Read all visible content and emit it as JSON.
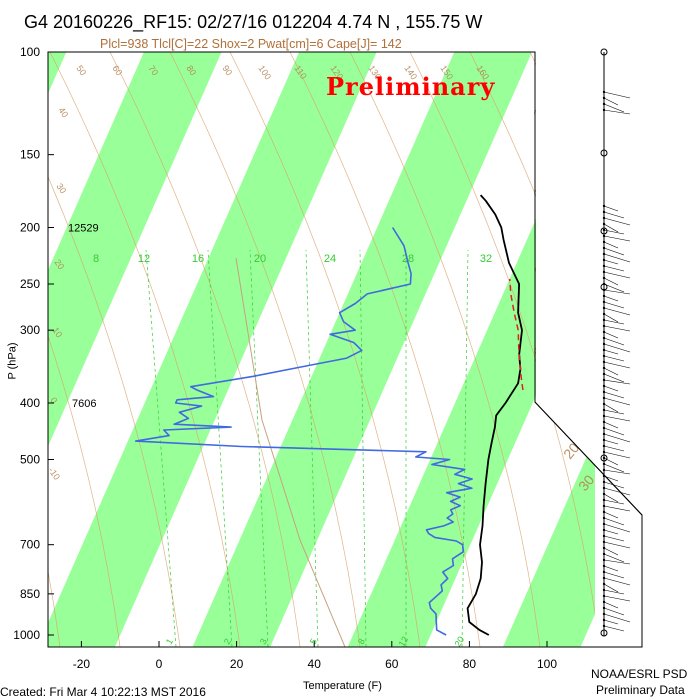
{
  "header": {
    "title": "G4 20160226_RF15: 02/27/16 012204   4.74 N , 155.75 W",
    "subtitle": "Plcl=938 Tlcl[C]=22 Shox=2 Pwat[cm]=6 Cape[J]= 142"
  },
  "stamp": "Preliminary",
  "footer": {
    "created": "Created: Fri Mar  4 10:22:13 MST 2016",
    "credit_line1": "NOAA/ESRL PSD",
    "credit_line2": "Preliminary Data"
  },
  "colors": {
    "band": "#99ff99",
    "temperature": "#000000",
    "dewpoint": "#4169e1",
    "parcel": "#e02020",
    "isotherm_label": "#b08050",
    "mixing_ratio": "#33cc33",
    "stamp": "#ff0000"
  },
  "chart_data": {
    "type": "skew-t",
    "title": "G4 20160226_RF15: 02/27/16 012204   4.74 N , 155.75 W",
    "xlabel": "Temperature (F)",
    "ylabel": "P (hPa)",
    "xlim": [
      -28,
      118
    ],
    "ylim": [
      1030,
      100
    ],
    "y_scale": "log",
    "pressure_ticks": [
      100,
      150,
      200,
      250,
      300,
      400,
      500,
      700,
      850,
      1000
    ],
    "pressure_tick_labels": [
      "100",
      "150",
      "200",
      "250",
      "300",
      "400",
      "500",
      "700",
      "850",
      "1000"
    ],
    "temperature_ticks": [
      -20,
      0,
      20,
      40,
      60,
      80,
      100
    ],
    "temperature_tick_labels": [
      "-20",
      "0",
      "20",
      "40",
      "60",
      "80",
      "100"
    ],
    "height_labels": [
      {
        "p": 200,
        "text": "12529"
      },
      {
        "p": 400,
        "text": "7606"
      }
    ],
    "isotherm_labels": [
      "-10",
      "0",
      "10",
      "20",
      "30",
      "40",
      "50",
      "60",
      "70",
      "80",
      "90",
      "100",
      "110",
      "120",
      "130",
      "140",
      "150",
      "160"
    ],
    "mixing_ratio_labels": [
      "8",
      "12",
      "16",
      "20",
      "24",
      "28",
      "32"
    ],
    "mixing_ratio_lower_labels": [
      "1",
      "2",
      "3",
      "5",
      "8",
      "12",
      "20"
    ],
    "series": [
      {
        "name": "temperature",
        "points": [
          [
            1000,
            85
          ],
          [
            980,
            82
          ],
          [
            950,
            78.5
          ],
          [
            900,
            76.5
          ],
          [
            850,
            77
          ],
          [
            800,
            76.5
          ],
          [
            750,
            75
          ],
          [
            700,
            72.5
          ],
          [
            650,
            71
          ],
          [
            600,
            69
          ],
          [
            550,
            67
          ],
          [
            500,
            65
          ],
          [
            470,
            64
          ],
          [
            440,
            63
          ],
          [
            420,
            62
          ],
          [
            400,
            63
          ],
          [
            370,
            64
          ],
          [
            350,
            63
          ],
          [
            330,
            61
          ],
          [
            300,
            59
          ],
          [
            280,
            56
          ],
          [
            250,
            53
          ],
          [
            230,
            48
          ],
          [
            210,
            44
          ],
          [
            200,
            42
          ],
          [
            190,
            39
          ],
          [
            180,
            35
          ],
          [
            176,
            33
          ]
        ]
      },
      {
        "name": "dewpoint",
        "points": [
          [
            1000,
            74
          ],
          [
            980,
            71
          ],
          [
            950,
            70
          ],
          [
            920,
            69
          ],
          [
            900,
            67
          ],
          [
            880,
            66
          ],
          [
            860,
            67
          ],
          [
            840,
            68
          ],
          [
            820,
            67
          ],
          [
            800,
            68
          ],
          [
            780,
            66
          ],
          [
            760,
            68
          ],
          [
            740,
            67
          ],
          [
            720,
            69
          ],
          [
            700,
            68
          ],
          [
            690,
            66
          ],
          [
            680,
            60
          ],
          [
            670,
            58
          ],
          [
            660,
            57
          ],
          [
            650,
            61
          ],
          [
            640,
            63
          ],
          [
            630,
            61
          ],
          [
            620,
            62
          ],
          [
            610,
            61
          ],
          [
            600,
            63
          ],
          [
            590,
            60
          ],
          [
            580,
            62
          ],
          [
            570,
            58
          ],
          [
            560,
            64
          ],
          [
            550,
            60
          ],
          [
            540,
            63
          ],
          [
            530,
            58
          ],
          [
            520,
            60
          ],
          [
            510,
            51
          ],
          [
            500,
            55
          ],
          [
            495,
            46
          ],
          [
            485,
            48
          ],
          [
            475,
            0
          ],
          [
            465,
            -28
          ],
          [
            455,
            -20
          ],
          [
            445,
            -22
          ],
          [
            440,
            -5
          ],
          [
            435,
            -20
          ],
          [
            425,
            -17
          ],
          [
            415,
            -20
          ],
          [
            405,
            -15
          ],
          [
            400,
            -22
          ],
          [
            395,
            -22
          ],
          [
            390,
            -13
          ],
          [
            380,
            -18
          ],
          [
            375,
            -20
          ],
          [
            360,
            -5
          ],
          [
            345,
            8
          ],
          [
            335,
            17
          ],
          [
            325,
            20
          ],
          [
            315,
            17
          ],
          [
            305,
            10
          ],
          [
            300,
            16
          ],
          [
            290,
            12
          ],
          [
            280,
            10
          ],
          [
            270,
            13
          ],
          [
            260,
            15
          ],
          [
            250,
            25
          ],
          [
            240,
            24
          ],
          [
            230,
            22
          ],
          [
            215,
            19
          ],
          [
            200,
            14
          ]
        ]
      },
      {
        "name": "parcel",
        "points": [
          [
            380,
            66
          ],
          [
            360,
            64
          ],
          [
            340,
            62
          ],
          [
            320,
            60
          ],
          [
            300,
            58
          ],
          [
            280,
            55
          ],
          [
            260,
            52
          ],
          [
            245,
            50
          ]
        ]
      }
    ]
  }
}
